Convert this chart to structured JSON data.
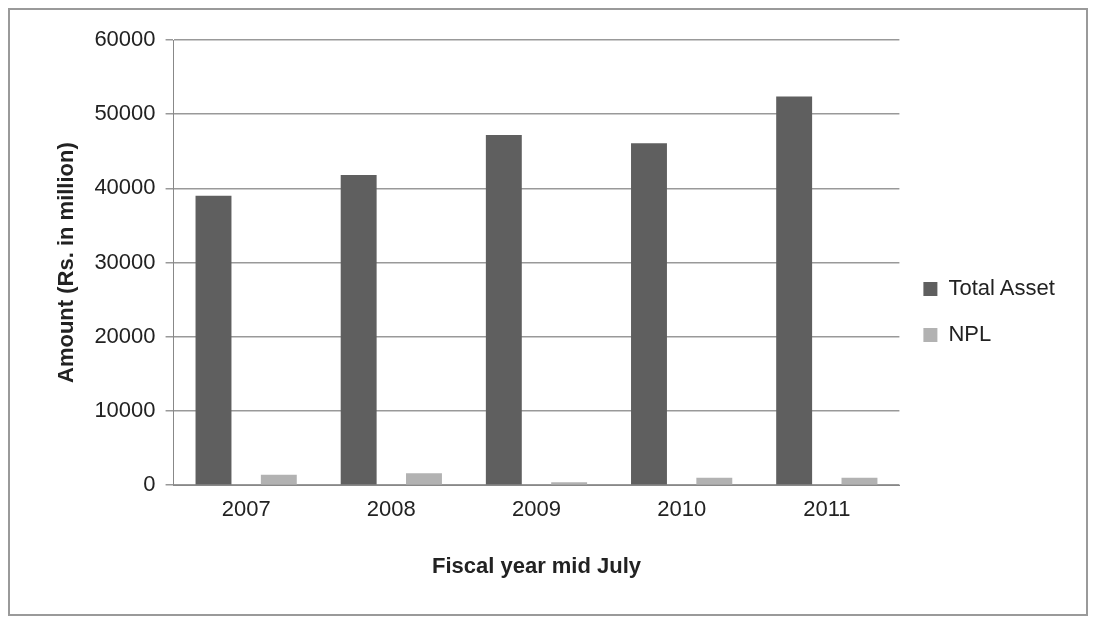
{
  "chart_data": {
    "type": "bar",
    "xlabel": "Fiscal year mid July",
    "ylabel": "Amount (Rs. in million)",
    "categories": [
      "2007",
      "2008",
      "2009",
      "2010",
      "2011"
    ],
    "series": [
      {
        "name": "Total Asset",
        "color": "#5f5f5f",
        "values": [
          39000,
          41800,
          47200,
          46100,
          52400
        ]
      },
      {
        "name": "NPL",
        "color": "#b2b2b2",
        "values": [
          1400,
          1600,
          400,
          1000,
          1000
        ]
      }
    ],
    "ylim": [
      0,
      60000
    ],
    "yticks": [
      0,
      10000,
      20000,
      30000,
      40000,
      50000,
      60000
    ],
    "grid": "y",
    "legend": "right"
  }
}
